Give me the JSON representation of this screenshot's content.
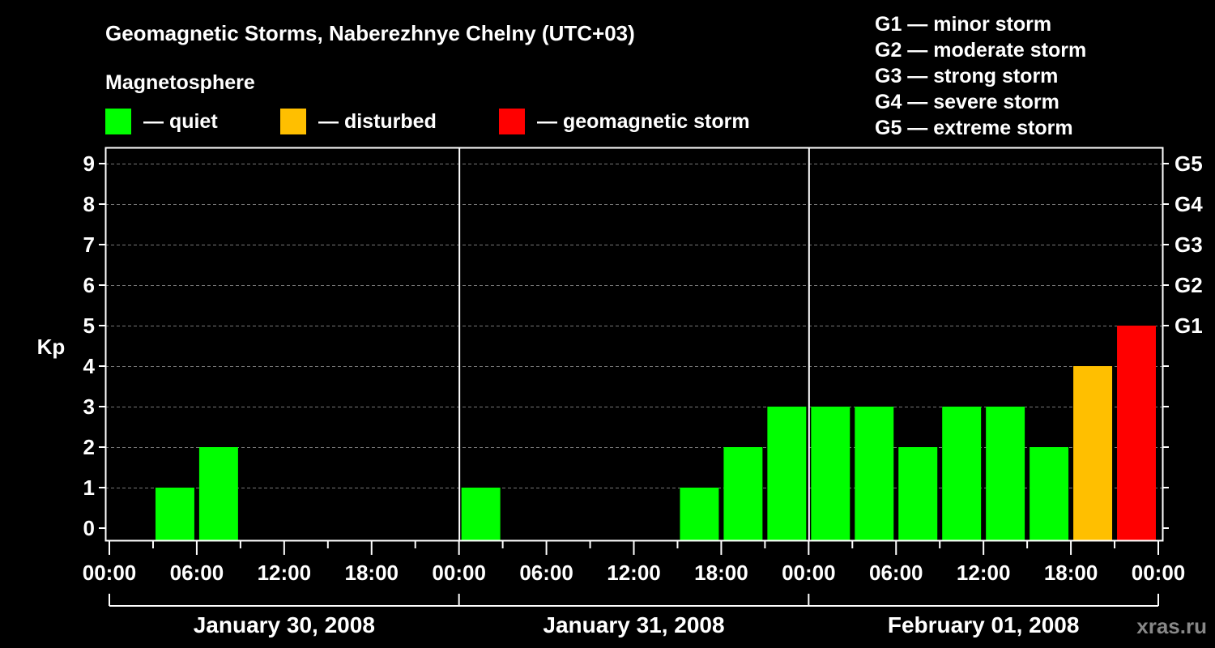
{
  "chart_data": {
    "type": "bar",
    "title": "Geomagnetic Storms, Naberezhnye Chelny (UTC+03)",
    "ylabel": "Kp",
    "ylim": [
      0,
      9
    ],
    "y_ticks": [
      "0",
      "1",
      "2",
      "3",
      "4",
      "5",
      "6",
      "7",
      "8",
      "9"
    ],
    "right_ticks": [
      {
        "kp": 5,
        "label": "G1"
      },
      {
        "kp": 6,
        "label": "G2"
      },
      {
        "kp": 7,
        "label": "G3"
      },
      {
        "kp": 8,
        "label": "G4"
      },
      {
        "kp": 9,
        "label": "G5"
      }
    ],
    "x_tick_labels": [
      "00:00",
      "06:00",
      "12:00",
      "18:00",
      "00:00",
      "06:00",
      "12:00",
      "18:00",
      "00:00",
      "06:00",
      "12:00",
      "18:00",
      "00:00"
    ],
    "days": [
      "January 30, 2008",
      "January 31, 2008",
      "February 01, 2008"
    ],
    "interval_hours": 3,
    "values": [
      0,
      1,
      2,
      0,
      0,
      0,
      0,
      0,
      1,
      0,
      0,
      0,
      0,
      1,
      2,
      3,
      3,
      3,
      2,
      3,
      3,
      2,
      4,
      5
    ],
    "grid": true,
    "legend": {
      "heading": "Magnetosphere",
      "items": [
        {
          "label": "— quiet",
          "color": "#00ff00"
        },
        {
          "label": "— disturbed",
          "color": "#ffbf00"
        },
        {
          "label": "— geomagnetic storm",
          "color": "#ff0000"
        }
      ]
    },
    "storm_scale": [
      "G1 — minor storm",
      "G2 — moderate storm",
      "G3 — strong storm",
      "G4 — severe storm",
      "G5 — extreme storm"
    ],
    "colors": {
      "quiet": "#00ff00",
      "disturbed": "#ffbf00",
      "storm": "#ff0000"
    }
  },
  "watermark": "xras.ru"
}
